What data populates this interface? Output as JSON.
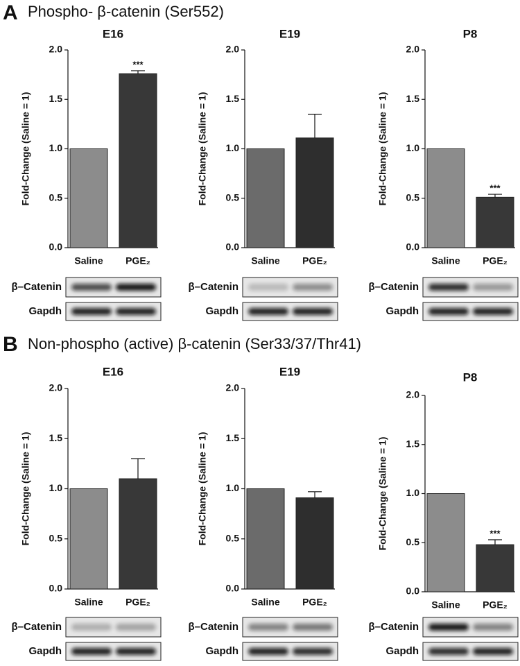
{
  "panels": [
    {
      "letter": "A",
      "title": "Phospho- β-catenin (Ser552)"
    },
    {
      "letter": "B",
      "title": "Non-phospho (active) β-catenin (Ser33/37/Thr41)"
    }
  ],
  "blot_labels": [
    "β–Catenin",
    "Gapdh"
  ],
  "chart_data": [
    {
      "type": "bar",
      "title": "E16",
      "y_label": "Fold-Change (Saline = 1)",
      "categories": [
        "Saline",
        "PGE₂"
      ],
      "values": [
        1.0,
        1.76
      ],
      "errors": [
        null,
        0.03
      ],
      "value_annotations": [
        null,
        "***"
      ],
      "colors": [
        "#8c8c8c",
        "#383838"
      ],
      "ylim": [
        0,
        2
      ],
      "yticks": [
        {
          "value": 0,
          "label": "0.0"
        },
        {
          "value": 0.5,
          "label": "0.5"
        },
        {
          "value": 1,
          "label": "1.0"
        },
        {
          "value": 1.5,
          "label": "1.5"
        },
        {
          "value": 2,
          "label": "2.0"
        }
      ]
    },
    {
      "type": "bar",
      "title": "E19",
      "y_label": "Fold-Change (Saline = 1)",
      "categories": [
        "Saline",
        "PGE₂"
      ],
      "values": [
        1.0,
        1.11
      ],
      "errors": [
        null,
        0.24
      ],
      "value_annotations": [
        null,
        null
      ],
      "colors": [
        "#6b6b6b",
        "#2e2e2e"
      ],
      "ylim": [
        0,
        2
      ],
      "yticks": [
        {
          "value": 0,
          "label": "0.0"
        },
        {
          "value": 0.5,
          "label": "0.5"
        },
        {
          "value": 1,
          "label": "1.0"
        },
        {
          "value": 1.5,
          "label": "1.5"
        },
        {
          "value": 2,
          "label": "2.0"
        }
      ]
    },
    {
      "type": "bar",
      "title": "P8",
      "y_label": "Fold-Change (Saline = 1)",
      "categories": [
        "Saline",
        "PGE₂"
      ],
      "values": [
        1.0,
        0.51
      ],
      "errors": [
        null,
        0.03
      ],
      "value_annotations": [
        null,
        "***"
      ],
      "colors": [
        "#8c8c8c",
        "#383838"
      ],
      "ylim": [
        0,
        2
      ],
      "yticks": [
        {
          "value": 0,
          "label": "0.0"
        },
        {
          "value": 0.5,
          "label": "0.5"
        },
        {
          "value": 1,
          "label": "1.0"
        },
        {
          "value": 1.5,
          "label": "1.5"
        },
        {
          "value": 2,
          "label": "2.0"
        }
      ]
    },
    {
      "type": "bar",
      "title": "E16",
      "y_label": "Fold-Change (Saline = 1)",
      "categories": [
        "Saline",
        "PGE₂"
      ],
      "values": [
        1.0,
        1.1
      ],
      "errors": [
        null,
        0.2
      ],
      "value_annotations": [
        null,
        null
      ],
      "colors": [
        "#8c8c8c",
        "#383838"
      ],
      "ylim": [
        0,
        2
      ],
      "yticks": [
        {
          "value": 0,
          "label": "0.0"
        },
        {
          "value": 0.5,
          "label": "0.5"
        },
        {
          "value": 1,
          "label": "1.0"
        },
        {
          "value": 1.5,
          "label": "1.5"
        },
        {
          "value": 2,
          "label": "2.0"
        }
      ]
    },
    {
      "type": "bar",
      "title": "E19",
      "y_label": "Fold-Change (Saline = 1)",
      "categories": [
        "Saline",
        "PGE₂"
      ],
      "values": [
        1.0,
        0.91
      ],
      "errors": [
        null,
        0.06
      ],
      "value_annotations": [
        null,
        null
      ],
      "colors": [
        "#6b6b6b",
        "#2e2e2e"
      ],
      "ylim": [
        0,
        2
      ],
      "yticks": [
        {
          "value": 0,
          "label": "0.0"
        },
        {
          "value": 0.5,
          "label": "0.5"
        },
        {
          "value": 1,
          "label": "1.0"
        },
        {
          "value": 1.5,
          "label": "1.5"
        },
        {
          "value": 2,
          "label": "2.0"
        }
      ]
    },
    {
      "type": "bar",
      "title": "P8",
      "y_label": "Fold-Change (Saline = 1)",
      "categories": [
        "Saline",
        "PGE₂"
      ],
      "values": [
        1.0,
        0.48
      ],
      "errors": [
        null,
        0.05
      ],
      "value_annotations": [
        null,
        "***"
      ],
      "colors": [
        "#8c8c8c",
        "#383838"
      ],
      "ylim": [
        0,
        2
      ],
      "yticks": [
        {
          "value": 0,
          "label": "0.0"
        },
        {
          "value": 0.5,
          "label": "0.5"
        },
        {
          "value": 1,
          "label": "1.0"
        },
        {
          "value": 1.5,
          "label": "1.5"
        },
        {
          "value": 2,
          "label": "2.0"
        }
      ]
    }
  ]
}
